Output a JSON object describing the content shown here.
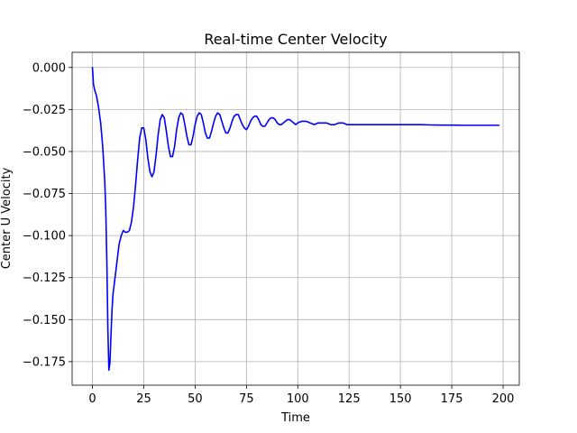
{
  "chart_data": {
    "type": "line",
    "title": "Real-time Center Velocity",
    "xlabel": "Time",
    "ylabel": "Center U Velocity",
    "xlim": [
      -9.9,
      207.9
    ],
    "ylim": [
      -0.189,
      0.009
    ],
    "xticks": [
      0,
      25,
      50,
      75,
      100,
      125,
      150,
      175,
      200
    ],
    "xtick_labels": [
      "0",
      "25",
      "50",
      "75",
      "100",
      "125",
      "150",
      "175",
      "200"
    ],
    "yticks": [
      0.0,
      -0.025,
      -0.05,
      -0.075,
      -0.1,
      -0.125,
      -0.15,
      -0.175
    ],
    "ytick_labels": [
      "0.000",
      "−0.025",
      "−0.050",
      "−0.075",
      "−0.100",
      "−0.125",
      "−0.150",
      "−0.175"
    ],
    "grid": true,
    "series": [
      {
        "color": "#0000ff",
        "x": [
          0,
          0.5,
          1,
          2,
          3,
          4,
          5,
          6,
          6.5,
          7,
          7.5,
          8,
          8.5,
          9,
          9.5,
          10,
          11,
          12,
          13,
          14,
          15,
          16,
          17,
          18,
          19,
          20,
          21,
          22,
          23,
          24,
          25,
          26,
          27,
          28,
          29,
          30,
          31,
          32,
          33,
          34,
          35,
          36,
          37,
          38,
          39,
          40,
          41,
          42,
          43,
          44,
          45,
          46,
          47,
          48,
          49,
          50,
          51,
          52,
          53,
          54,
          55,
          56,
          57,
          58,
          59,
          60,
          61,
          62,
          63,
          64,
          65,
          66,
          67,
          68,
          69,
          70,
          71,
          72,
          73,
          74,
          75,
          76,
          77,
          78,
          79,
          80,
          81,
          82,
          83,
          84,
          85,
          86,
          87,
          88,
          89,
          90,
          91,
          92,
          93,
          94,
          95,
          96,
          97,
          98,
          99,
          100,
          102,
          104,
          106,
          108,
          110,
          112,
          114,
          116,
          118,
          120,
          122,
          124,
          126,
          128,
          130,
          132,
          134,
          136,
          138,
          140,
          145,
          150,
          155,
          160,
          165,
          170,
          175,
          180,
          185,
          190,
          195,
          198
        ],
        "y": [
          0.0,
          -0.01,
          -0.013,
          -0.017,
          -0.024,
          -0.033,
          -0.047,
          -0.068,
          -0.085,
          -0.115,
          -0.155,
          -0.18,
          -0.176,
          -0.16,
          -0.145,
          -0.135,
          -0.125,
          -0.115,
          -0.105,
          -0.1,
          -0.097,
          -0.098,
          -0.098,
          -0.097,
          -0.092,
          -0.083,
          -0.07,
          -0.055,
          -0.042,
          -0.036,
          -0.036,
          -0.043,
          -0.054,
          -0.062,
          -0.065,
          -0.062,
          -0.052,
          -0.04,
          -0.031,
          -0.028,
          -0.03,
          -0.038,
          -0.047,
          -0.053,
          -0.053,
          -0.047,
          -0.037,
          -0.03,
          -0.027,
          -0.028,
          -0.034,
          -0.041,
          -0.046,
          -0.046,
          -0.041,
          -0.034,
          -0.029,
          -0.027,
          -0.028,
          -0.033,
          -0.039,
          -0.042,
          -0.042,
          -0.038,
          -0.033,
          -0.029,
          -0.027,
          -0.028,
          -0.032,
          -0.036,
          -0.039,
          -0.039,
          -0.036,
          -0.032,
          -0.029,
          -0.028,
          -0.028,
          -0.031,
          -0.034,
          -0.036,
          -0.037,
          -0.035,
          -0.032,
          -0.03,
          -0.029,
          -0.029,
          -0.031,
          -0.034,
          -0.035,
          -0.035,
          -0.033,
          -0.031,
          -0.03,
          -0.03,
          -0.031,
          -0.033,
          -0.034,
          -0.034,
          -0.033,
          -0.032,
          -0.031,
          -0.031,
          -0.032,
          -0.033,
          -0.034,
          -0.033,
          -0.032,
          -0.032,
          -0.033,
          -0.034,
          -0.033,
          -0.033,
          -0.033,
          -0.034,
          -0.034,
          -0.033,
          -0.033,
          -0.034,
          -0.034,
          -0.034,
          -0.034,
          -0.034,
          -0.034,
          -0.034,
          -0.034,
          -0.034,
          -0.034,
          -0.034,
          -0.034,
          -0.034,
          -0.0342,
          -0.0343,
          -0.0343,
          -0.0344,
          -0.0344,
          -0.0344,
          -0.0344,
          -0.0344
        ]
      }
    ]
  }
}
